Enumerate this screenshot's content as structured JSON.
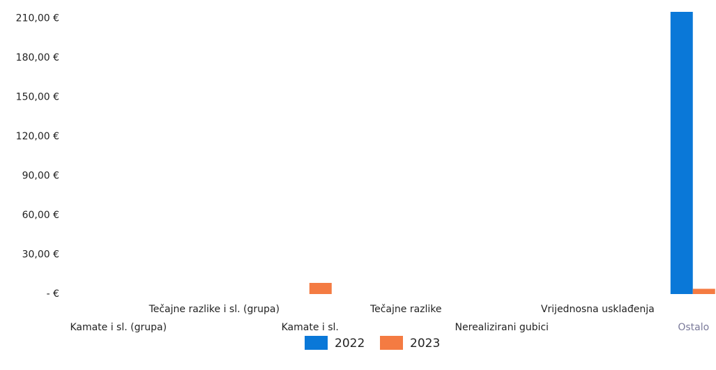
{
  "chart_data": {
    "type": "bar",
    "categories": [
      "Kamate i sl. (grupa)",
      "Tečajne razlike i sl. (grupa)",
      "Kamate i sl.",
      "Tečajne razlike",
      "Nerealizirani gubici",
      "Vrijednosna usklađenja",
      "Ostalo"
    ],
    "series": [
      {
        "name": "2022",
        "color": "#0a78d8",
        "values": [
          0,
          0,
          0,
          0,
          0,
          0,
          215
        ]
      },
      {
        "name": "2023",
        "color": "#f47b42",
        "values": [
          0,
          0,
          8.5,
          0,
          0,
          0,
          4
        ]
      }
    ],
    "ylim": [
      0,
      215
    ],
    "yticks": [
      {
        "value": 0,
        "label": "-  €"
      },
      {
        "value": 30,
        "label": "30,00 €"
      },
      {
        "value": 60,
        "label": "60,00 €"
      },
      {
        "value": 90,
        "label": "90,00 €"
      },
      {
        "value": 120,
        "label": "120,00 €"
      },
      {
        "value": 150,
        "label": "150,00 €"
      },
      {
        "value": 180,
        "label": "180,00 €"
      },
      {
        "value": 210,
        "label": "210,00 €"
      }
    ],
    "grid": false,
    "legend": "bottom"
  }
}
